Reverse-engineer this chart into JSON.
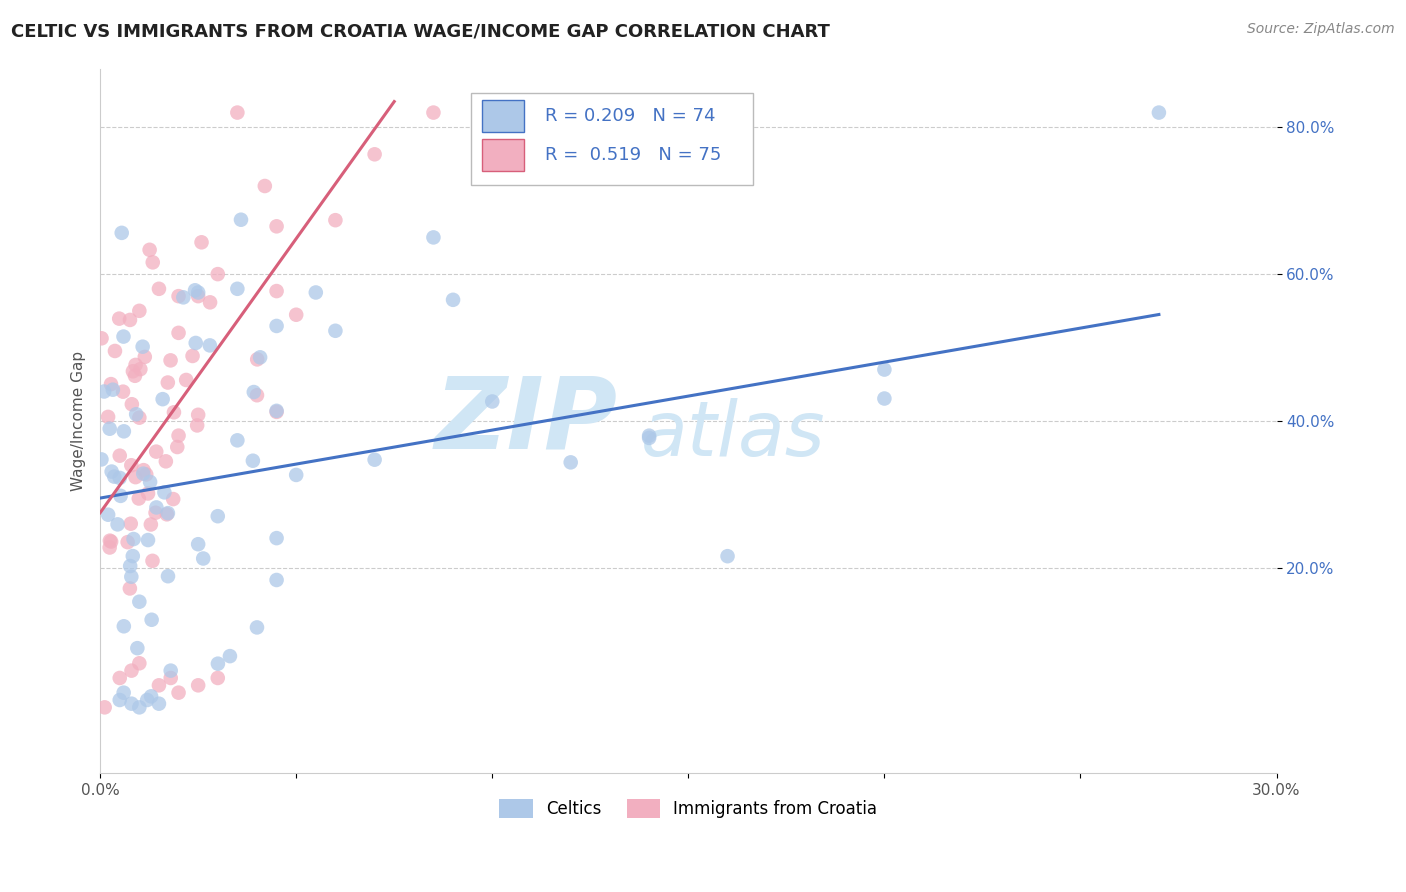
{
  "title": "CELTIC VS IMMIGRANTS FROM CROATIA WAGE/INCOME GAP CORRELATION CHART",
  "source": "Source: ZipAtlas.com",
  "ylabel": "Wage/Income Gap",
  "celtics_color": "#adc8e8",
  "croatia_color": "#f2afc0",
  "line_celtics_color": "#4472c4",
  "line_croatia_color": "#d75f7a",
  "background_color": "#ffffff",
  "grid_color": "#cccccc",
  "ytick_color": "#4472c4",
  "xtick_color": "#555555",
  "ylabel_color": "#555555",
  "watermark_color": "#d0e6f5",
  "xlim": [
    0.0,
    0.3
  ],
  "ylim": [
    -0.08,
    0.88
  ],
  "xtick_values": [
    0.0,
    0.05,
    0.1,
    0.15,
    0.2,
    0.25,
    0.3
  ],
  "xtick_labels_show": [
    "0.0%",
    "",
    "",
    "",
    "",
    "",
    "30.0%"
  ],
  "ytick_values": [
    0.2,
    0.4,
    0.6,
    0.8
  ],
  "ytick_labels": [
    "20.0%",
    "40.0%",
    "60.0%",
    "80.0%"
  ],
  "celtics_line_x": [
    0.0,
    0.27
  ],
  "celtics_line_y": [
    0.295,
    0.545
  ],
  "croatia_line_x": [
    0.0,
    0.075
  ],
  "croatia_line_y": [
    0.275,
    0.835
  ],
  "legend_r1": "R = 0.209",
  "legend_n1": "N = 74",
  "legend_r2": "R =  0.519",
  "legend_n2": "N = 75",
  "title_fontsize": 13,
  "source_fontsize": 10,
  "tick_fontsize": 11,
  "legend_fontsize": 13,
  "ylabel_fontsize": 11
}
